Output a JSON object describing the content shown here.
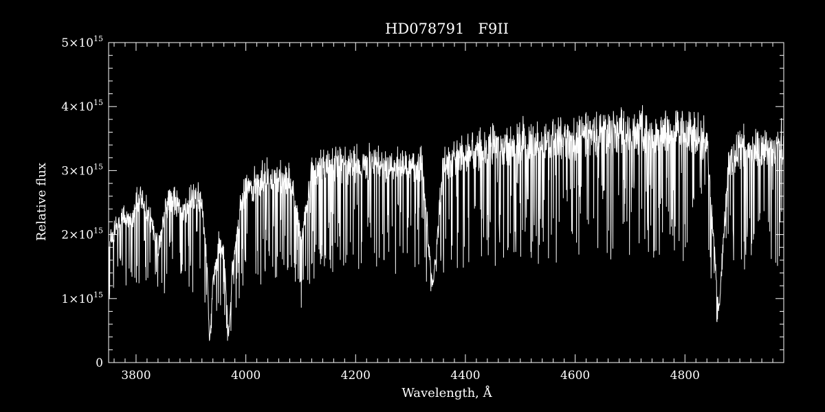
{
  "chart_data": {
    "type": "line",
    "title": "HD078791   F9II",
    "xlabel": "Wavelength, Å",
    "ylabel": "Relative flux",
    "xlim": [
      3750,
      4980
    ],
    "ylim": [
      0,
      5000000000000000.0
    ],
    "xticks": [
      3800,
      4000,
      4200,
      4400,
      4600,
      4800
    ],
    "yticks": [
      {
        "value": 0,
        "mant": "0",
        "exp": ""
      },
      {
        "value": 1000000000000000.0,
        "mant": "1×10",
        "exp": "15"
      },
      {
        "value": 2000000000000000.0,
        "mant": "2×10",
        "exp": "15"
      },
      {
        "value": 3000000000000000.0,
        "mant": "3×10",
        "exp": "15"
      },
      {
        "value": 4000000000000000.0,
        "mant": "4×10",
        "exp": "15"
      },
      {
        "value": 5000000000000000.0,
        "mant": "5×10",
        "exp": "15"
      }
    ],
    "grid": false,
    "line_color": "#ffffff",
    "background": "#000000",
    "series": [
      {
        "x": [
          3750,
          3760,
          3770,
          3780,
          3790,
          3800,
          3810,
          3820,
          3830,
          3840,
          3850,
          3860,
          3870,
          3880,
          3890,
          3900,
          3910,
          3920,
          3930,
          3933.7,
          3940,
          3950,
          3960,
          3968.5,
          3975,
          3990,
          4000,
          4020,
          4040,
          4060,
          4080,
          4101.7,
          4120,
          4140,
          4160,
          4180,
          4200,
          4220,
          4240,
          4260,
          4280,
          4300,
          4320,
          4340.5,
          4360,
          4380,
          4400,
          4420,
          4440,
          4460,
          4480,
          4500,
          4520,
          4540,
          4560,
          4580,
          4600,
          4620,
          4640,
          4660,
          4680,
          4700,
          4720,
          4740,
          4760,
          4780,
          4800,
          4820,
          4840,
          4861.3,
          4880,
          4900,
          4920,
          4940,
          4960,
          4980
        ],
        "y": [
          2000000000000000.0,
          2200000000000000.0,
          2300000000000000.0,
          2500000000000000.0,
          2400000000000000.0,
          2600000000000000.0,
          2800000000000000.0,
          2600000000000000.0,
          2300000000000000.0,
          1900000000000000.0,
          2400000000000000.0,
          2800000000000000.0,
          2700000000000000.0,
          2600000000000000.0,
          2500000000000000.0,
          2700000000000000.0,
          2800000000000000.0,
          2700000000000000.0,
          1500000000000000.0,
          300000000000000.0,
          1300000000000000.0,
          2000000000000000.0,
          1900000000000000.0,
          400000000000000.0,
          1500000000000000.0,
          2600000000000000.0,
          2900000000000000.0,
          3000000000000000.0,
          3100000000000000.0,
          3100000000000000.0,
          3100000000000000.0,
          2000000000000000.0,
          3200000000000000.0,
          3300000000000000.0,
          3350000000000000.0,
          3300000000000000.0,
          3300000000000000.0,
          3350000000000000.0,
          3350000000000000.0,
          3300000000000000.0,
          3350000000000000.0,
          3300000000000000.0,
          3350000000000000.0,
          1200000000000000.0,
          3300000000000000.0,
          3450000000000000.0,
          3500000000000000.0,
          3550000000000000.0,
          3600000000000000.0,
          3650000000000000.0,
          3650000000000000.0,
          3700000000000000.0,
          3700000000000000.0,
          3700000000000000.0,
          3700000000000000.0,
          3750000000000000.0,
          3750000000000000.0,
          3800000000000000.0,
          3800000000000000.0,
          3800000000000000.0,
          3850000000000000.0,
          3850000000000000.0,
          3850000000000000.0,
          3850000000000000.0,
          3900000000000000.0,
          3900000000000000.0,
          3900000000000000.0,
          3850000000000000.0,
          3700000000000000.0,
          800000000000000.0,
          3400000000000000.0,
          3600000000000000.0,
          3600000000000000.0,
          3600000000000000.0,
          3650000000000000.0,
          3650000000000000.0
        ]
      }
    ]
  }
}
